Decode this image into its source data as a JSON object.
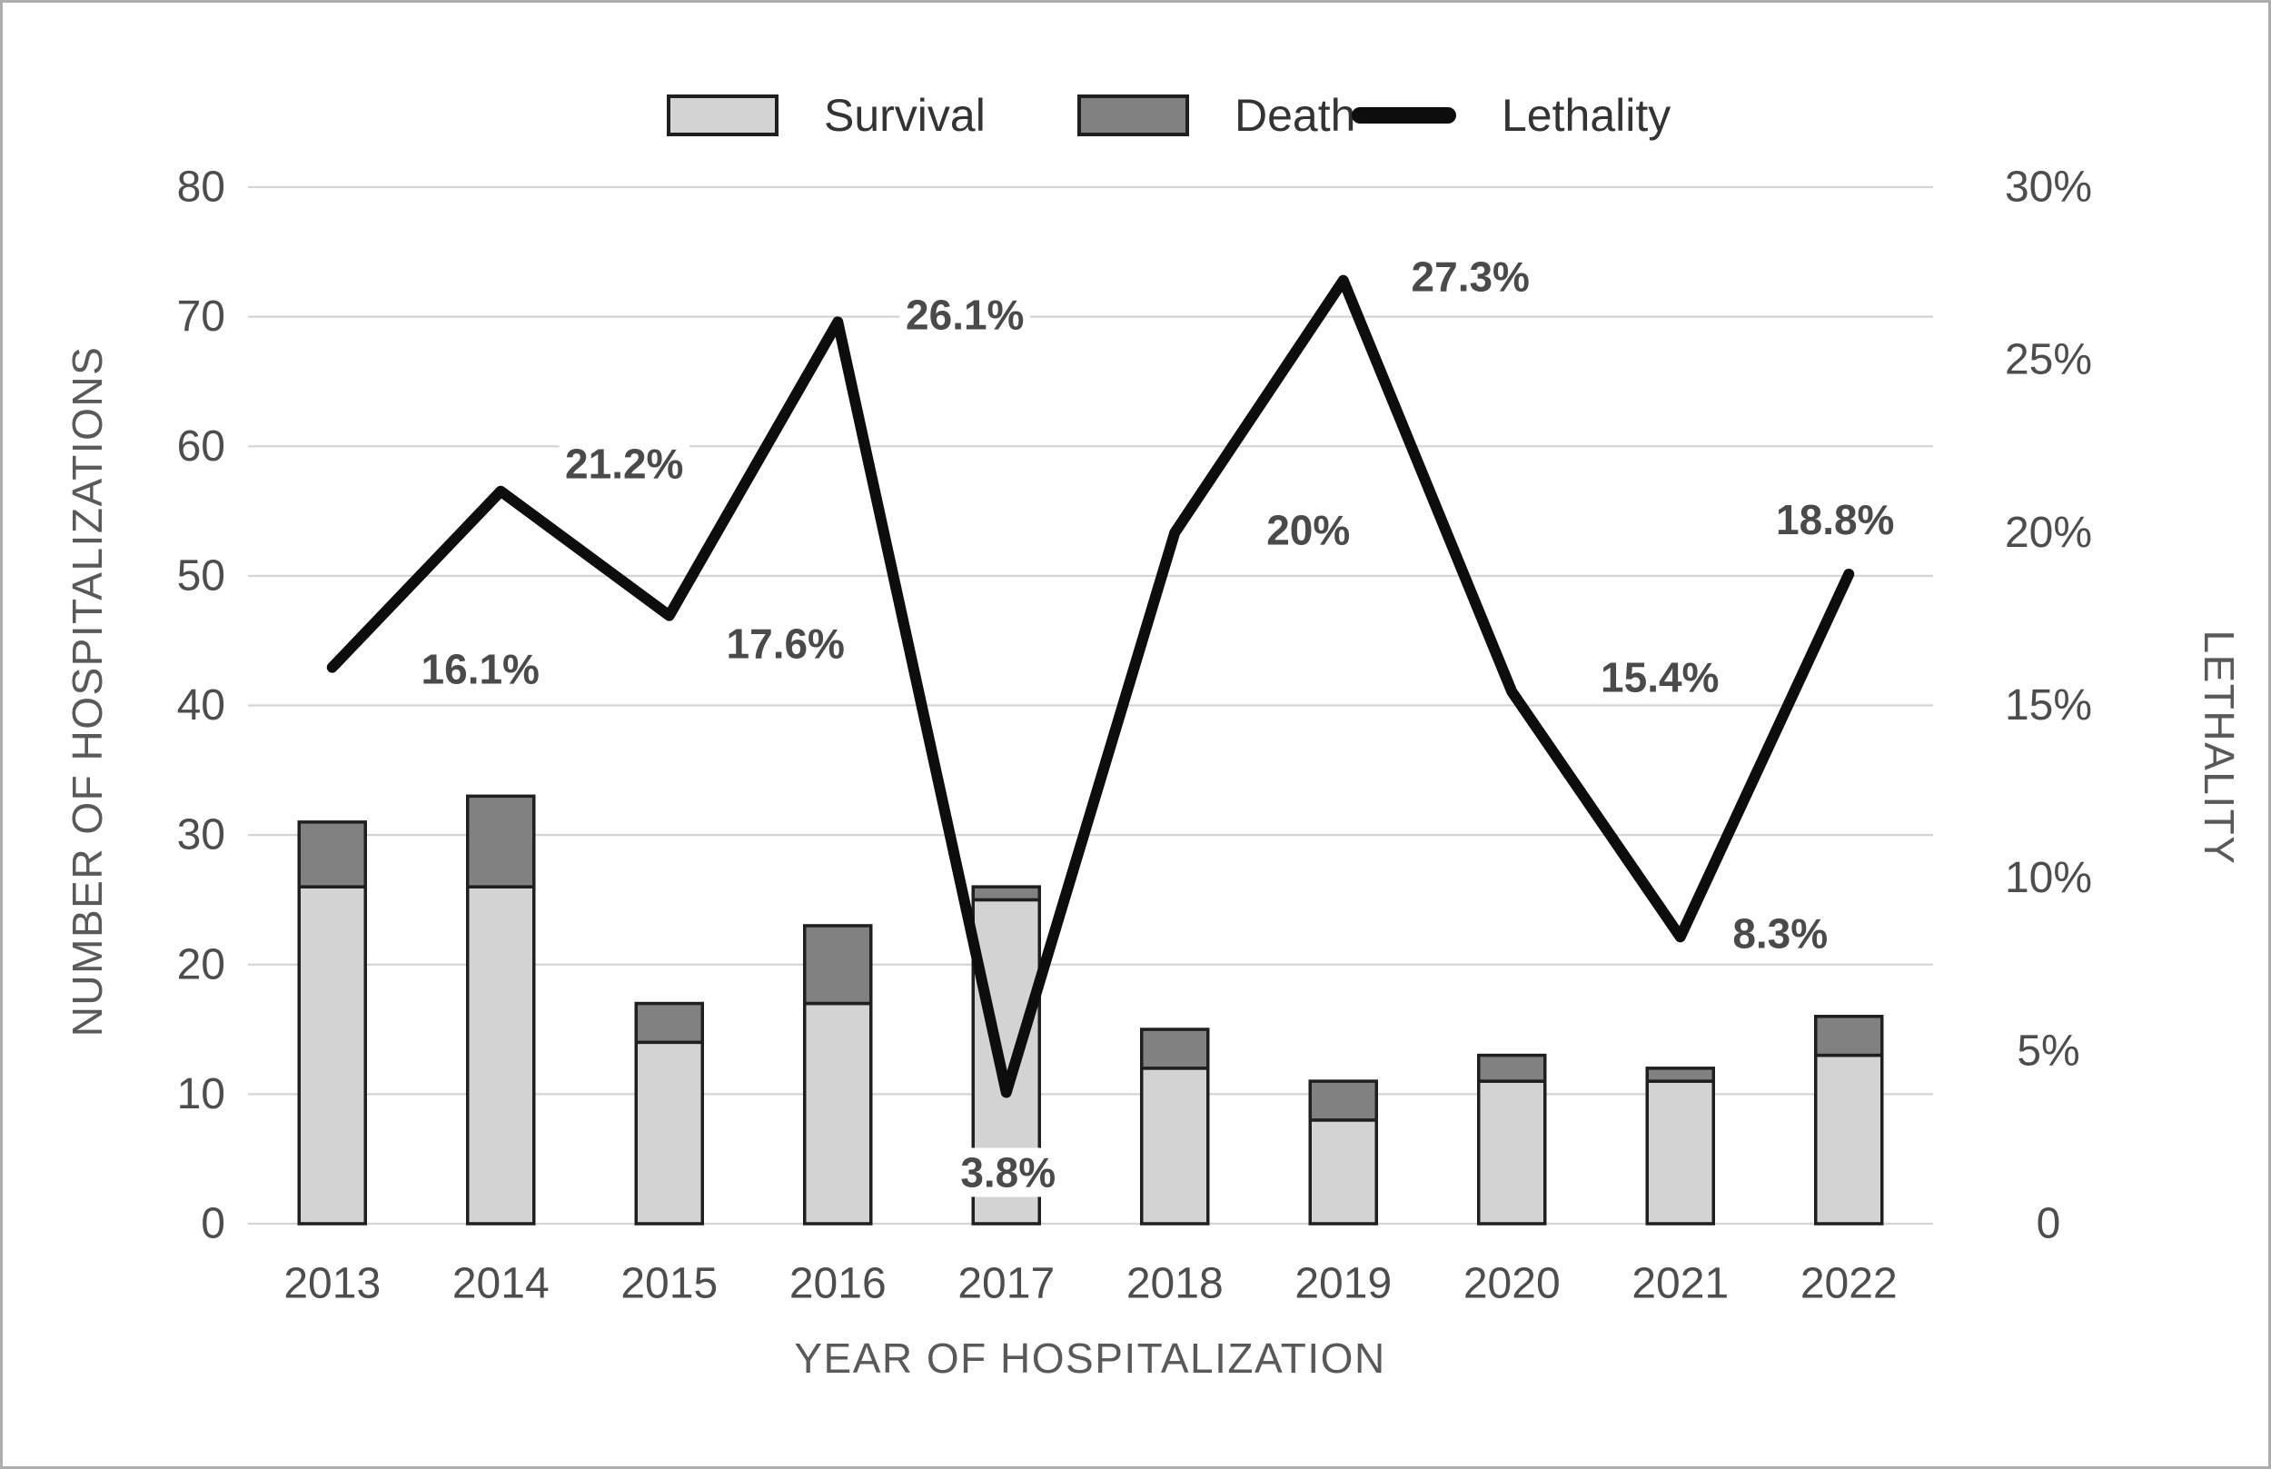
{
  "figure": {
    "legend": [
      {
        "label": "Survival",
        "swatch": "bar-light"
      },
      {
        "label": "Death",
        "swatch": "bar-dark"
      },
      {
        "label": "Lethality",
        "swatch": "line"
      }
    ],
    "colors": {
      "survival_fill": "#d3d3d3",
      "death_fill": "#818181",
      "bar_border": "#1f1f1f",
      "line": "#0d0d0d",
      "grid": "#d4d4d4",
      "tick_text": "#4d4d4d",
      "axis_title_text": "#595959",
      "data_label_text": "#4a4a4a"
    }
  },
  "chart_data": {
    "type": "combo-stacked-bar-line",
    "categories": [
      "2013",
      "2014",
      "2015",
      "2016",
      "2017",
      "2018",
      "2019",
      "2020",
      "2021",
      "2022"
    ],
    "series": [
      {
        "name": "Survival",
        "type": "bar",
        "stack": "hospitalizations",
        "values": [
          26,
          26,
          14,
          17,
          25,
          12,
          8,
          11,
          11,
          13
        ]
      },
      {
        "name": "Death",
        "type": "bar",
        "stack": "hospitalizations",
        "values": [
          5,
          7,
          3,
          6,
          1,
          3,
          3,
          2,
          1,
          3
        ]
      },
      {
        "name": "Lethality",
        "type": "line",
        "axis": "right",
        "unit": "%",
        "values": [
          16.1,
          21.2,
          17.6,
          26.1,
          3.8,
          20.0,
          27.3,
          15.4,
          8.3,
          18.8
        ],
        "point_labels": [
          "16.1%",
          "21.2%",
          "17.6%",
          "26.1%",
          "3.8%",
          "20%",
          "27.3%",
          "15.4%",
          "8.3%",
          "18.8%"
        ]
      }
    ],
    "left_axis": {
      "title": "NUMBER OF HOSPITALIZATIONS",
      "ticks": [
        "0",
        "10",
        "20",
        "30",
        "40",
        "50",
        "60",
        "70",
        "80"
      ],
      "min": 0,
      "max": 80,
      "grid": true
    },
    "right_axis": {
      "title": "LETHALITY",
      "ticks": [
        "0",
        "5%",
        "10%",
        "15%",
        "20%",
        "25%",
        "30%"
      ],
      "min": 0,
      "max": 30,
      "grid": false
    },
    "x_axis": {
      "title": "YEAR OF HOSPITALIZATION"
    },
    "legend_position": "top-center"
  }
}
